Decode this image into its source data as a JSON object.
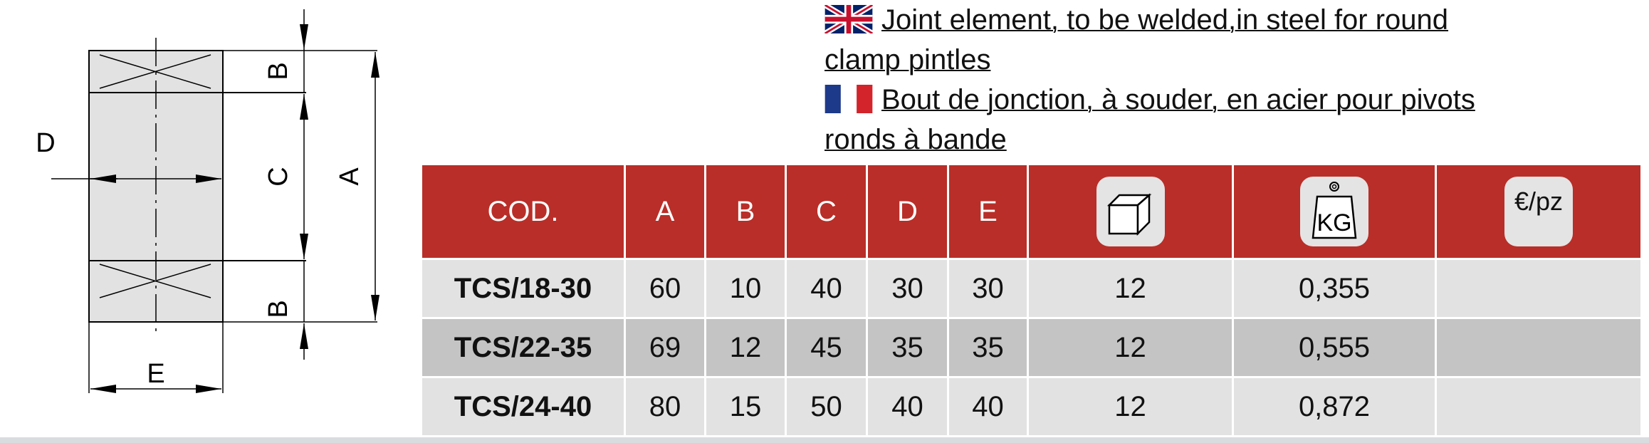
{
  "drawing": {
    "labels": {
      "A": "A",
      "B": "B",
      "C": "C",
      "D": "D",
      "E": "E"
    }
  },
  "title": {
    "en_flag_icon": "uk-flag-icon",
    "en_line1": "Joint element, to be welded,in steel for round",
    "en_line2": "clamp pintles",
    "fr_flag_icon": "france-flag-icon",
    "fr_line1": "Bout de jonction, à souder, en acier pour pivots",
    "fr_line2": "ronds à bande"
  },
  "table": {
    "headers": {
      "code": "COD.",
      "a": "A",
      "b": "B",
      "c": "C",
      "d": "D",
      "e": "E",
      "pack_icon": "box-icon",
      "weight_icon": "kg-weight-icon",
      "weight_label": "KG",
      "price": "€/pz"
    },
    "rows": [
      {
        "code": "TCS/18-30",
        "a": "60",
        "b": "10",
        "c": "40",
        "d": "30",
        "e": "30",
        "pack": "12",
        "weight": "0,355",
        "price": ""
      },
      {
        "code": "TCS/22-35",
        "a": "69",
        "b": "12",
        "c": "45",
        "d": "35",
        "e": "35",
        "pack": "12",
        "weight": "0,555",
        "price": ""
      },
      {
        "code": "TCS/24-40",
        "a": "80",
        "b": "15",
        "c": "50",
        "d": "40",
        "e": "40",
        "pack": "12",
        "weight": "0,872",
        "price": ""
      }
    ]
  },
  "colors": {
    "header_red": "#b92e28",
    "row_light": "#e2e2e2",
    "row_dark": "#c4c4c4"
  }
}
